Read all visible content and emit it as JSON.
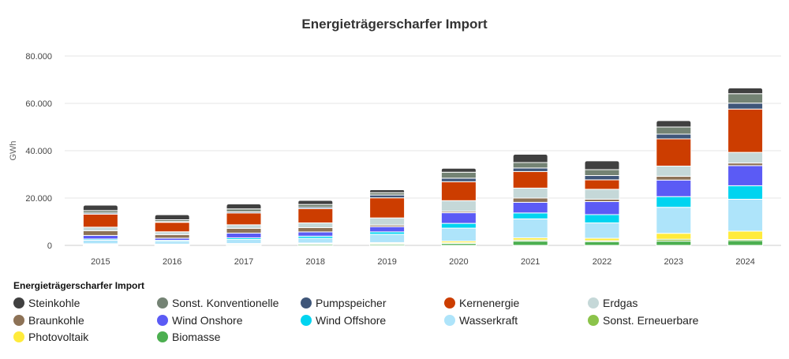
{
  "chart_data": {
    "type": "bar",
    "stacked": true,
    "title": "Energieträgerscharfer Import",
    "xlabel": "",
    "ylabel": "GWh",
    "ylim": [
      0,
      80000
    ],
    "yticks": [
      0,
      20000,
      40000,
      60000,
      80000
    ],
    "ytick_labels": [
      "0",
      "20.000",
      "40.000",
      "60.000",
      "80.000"
    ],
    "grid": true,
    "legend_title": "Energieträgerscharfer Import",
    "legend_position": "bottom-left",
    "categories": [
      "2015",
      "2016",
      "2017",
      "2018",
      "2019",
      "2020",
      "2021",
      "2022",
      "2023",
      "2024"
    ],
    "series": [
      {
        "name": "Biomasse",
        "color": "#4caf50",
        "values": [
          300,
          250,
          400,
          500,
          500,
          800,
          1800,
          1600,
          1800,
          2000
        ]
      },
      {
        "name": "Sonst. Erneuerbare",
        "color": "#8bc34a",
        "values": [
          100,
          100,
          200,
          200,
          300,
          300,
          500,
          400,
          800,
          500
        ]
      },
      {
        "name": "Photovoltaik",
        "color": "#ffeb3b",
        "values": [
          300,
          200,
          200,
          300,
          400,
          700,
          900,
          1000,
          2500,
          3500
        ]
      },
      {
        "name": "Wasserkraft",
        "color": "#aee4fa",
        "values": [
          1500,
          1200,
          1700,
          2000,
          3500,
          5500,
          8000,
          6500,
          11000,
          13500
        ]
      },
      {
        "name": "Wind Offshore",
        "color": "#00d4f0",
        "values": [
          500,
          400,
          700,
          900,
          1000,
          2000,
          2500,
          3500,
          4500,
          5700
        ]
      },
      {
        "name": "Wind Onshore",
        "color": "#5b5bf5",
        "values": [
          1500,
          900,
          2000,
          1800,
          2200,
          4500,
          4500,
          5500,
          7000,
          8500
        ]
      },
      {
        "name": "Braunkohle",
        "color": "#8d7256",
        "values": [
          2000,
          1500,
          2000,
          1800,
          700,
          600,
          1800,
          1000,
          1600,
          1100
        ]
      },
      {
        "name": "Erdgas",
        "color": "#c5d8d8",
        "values": [
          1500,
          1200,
          1500,
          2000,
          3000,
          4500,
          4200,
          4200,
          4300,
          4500
        ]
      },
      {
        "name": "Kernenergie",
        "color": "#cc3d00",
        "values": [
          5500,
          4000,
          5000,
          6000,
          8500,
          8000,
          7000,
          4000,
          11500,
          18300
        ]
      },
      {
        "name": "Pumpspeicher",
        "color": "#3f5679",
        "values": [
          500,
          300,
          500,
          600,
          1200,
          1500,
          1500,
          1800,
          2000,
          2500
        ]
      },
      {
        "name": "Sonst. Konventionelle",
        "color": "#748374",
        "values": [
          1000,
          800,
          1200,
          1200,
          1000,
          2500,
          2300,
          2500,
          3000,
          4000
        ]
      },
      {
        "name": "Steinkohle",
        "color": "#404040",
        "values": [
          2300,
          2100,
          2100,
          1700,
          1200,
          1700,
          3500,
          3700,
          2700,
          2400
        ]
      }
    ],
    "legend_order": [
      "Steinkohle",
      "Sonst. Konventionelle",
      "Pumpspeicher",
      "Kernenergie",
      "Erdgas",
      "Braunkohle",
      "Wind Onshore",
      "Wind Offshore",
      "Wasserkraft",
      "Sonst. Erneuerbare",
      "Photovoltaik",
      "Biomasse"
    ]
  }
}
